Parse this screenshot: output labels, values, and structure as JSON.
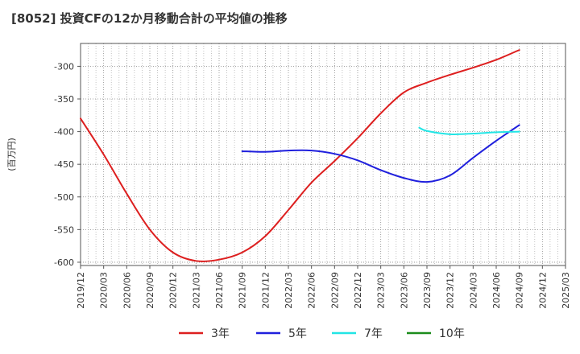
{
  "chart_data": {
    "type": "line",
    "title": "[8052]  投資CFの12か月移動合計の平均値の推移",
    "ylabel": "(百万円)",
    "ylim": [
      -605,
      -265
    ],
    "yticks": [
      -300,
      -350,
      -400,
      -450,
      -500,
      -550,
      -600
    ],
    "x_ticks": [
      "2019/12",
      "2020/03",
      "2020/06",
      "2020/09",
      "2020/12",
      "2021/03",
      "2021/06",
      "2021/09",
      "2021/12",
      "2022/03",
      "2022/06",
      "2022/09",
      "2022/12",
      "2023/03",
      "2023/06",
      "2023/09",
      "2023/12",
      "2024/03",
      "2024/06",
      "2024/09",
      "2024/12",
      "2025/03"
    ],
    "grid": true,
    "legend_position": "bottom",
    "series": [
      {
        "name": "3年",
        "color": "#dd1f1f",
        "x": [
          "2019/12",
          "2020/03",
          "2020/06",
          "2020/09",
          "2020/12",
          "2021/03",
          "2021/06",
          "2021/09",
          "2021/12",
          "2022/03",
          "2022/06",
          "2022/09",
          "2022/12",
          "2023/03",
          "2023/06",
          "2023/09",
          "2023/12",
          "2024/03",
          "2024/06",
          "2024/09"
        ],
        "values": [
          -380,
          -435,
          -495,
          -550,
          -585,
          -598,
          -596,
          -585,
          -560,
          -520,
          -478,
          -445,
          -410,
          -372,
          -340,
          -325,
          -313,
          -302,
          -290,
          -275
        ]
      },
      {
        "name": "5年",
        "color": "#1f1fdd",
        "x": [
          "2021/09",
          "2021/12",
          "2022/03",
          "2022/06",
          "2022/09",
          "2022/12",
          "2023/03",
          "2023/06",
          "2023/09",
          "2023/12",
          "2024/03",
          "2024/06",
          "2024/09"
        ],
        "values": [
          -430,
          -431,
          -429,
          -429,
          -434,
          -444,
          -459,
          -471,
          -477,
          -467,
          -440,
          -414,
          -390
        ]
      },
      {
        "name": "7年",
        "color": "#22e5e5",
        "x": [
          "2023/08",
          "2023/09",
          "2023/12",
          "2024/03",
          "2024/06",
          "2024/09"
        ],
        "values": [
          -394,
          -399,
          -404,
          -403,
          -401,
          -400
        ]
      },
      {
        "name": "10年",
        "color": "#1b8c1b",
        "x": [],
        "values": []
      }
    ]
  }
}
